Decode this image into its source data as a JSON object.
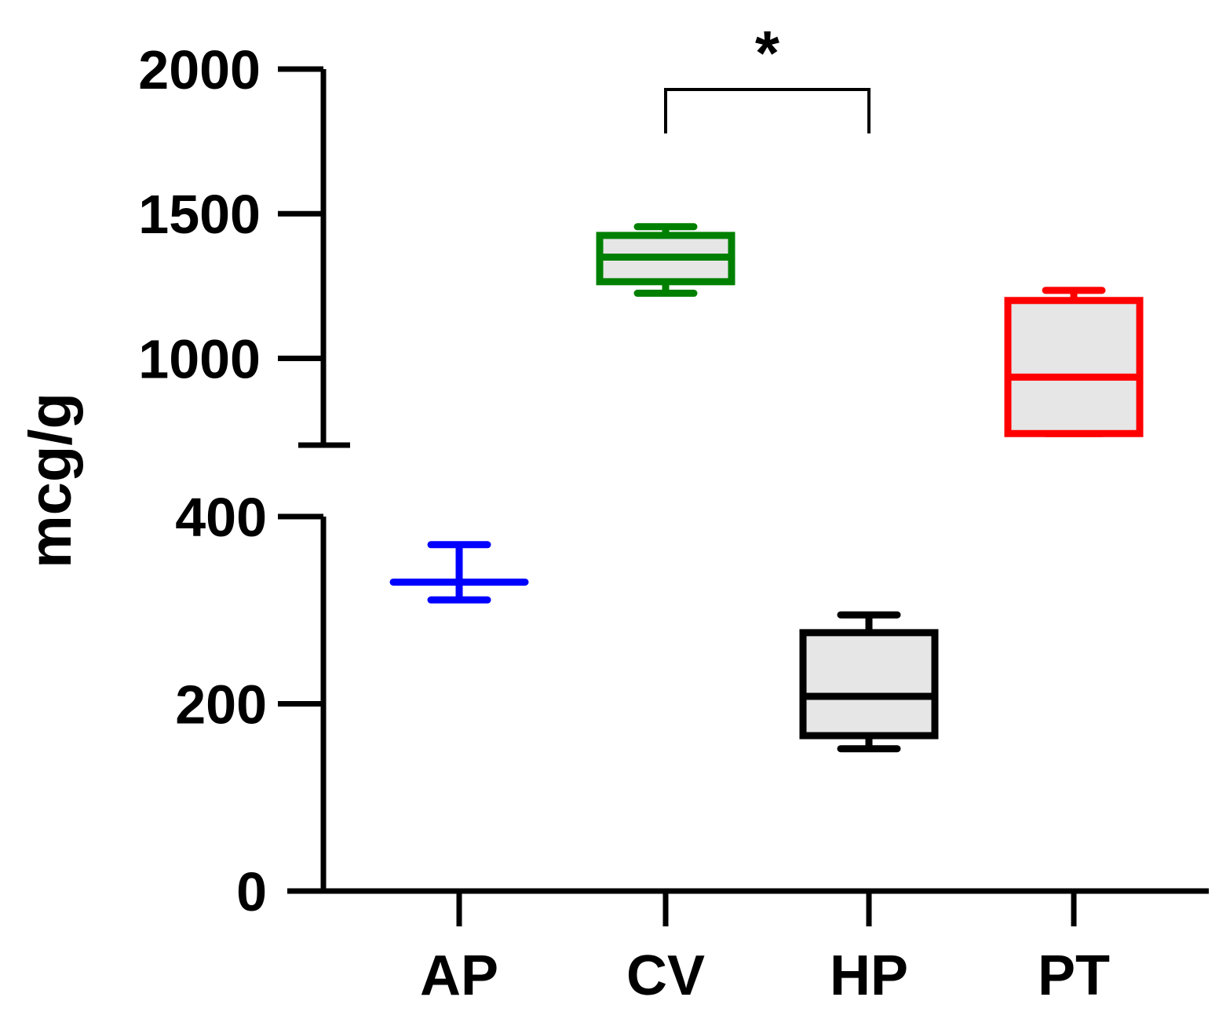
{
  "chart_data": {
    "type": "box",
    "ylabel": "mcg/g",
    "y_axis": {
      "broken": true,
      "lower_segment": {
        "range": [
          0,
          400
        ],
        "ticks": [
          "0",
          "200",
          "400"
        ]
      },
      "upper_segment": {
        "range": [
          700,
          2000
        ],
        "ticks": [
          "1000",
          "1500",
          "2000"
        ]
      }
    },
    "categories": [
      "AP",
      "CV",
      "HP",
      "PT"
    ],
    "boxes": [
      {
        "category": "AP",
        "color": "#0000ff",
        "min": 311,
        "q1": 330,
        "median": 330,
        "q3": 330,
        "max": 370
      },
      {
        "category": "CV",
        "color": "#008000",
        "min": 1225,
        "q1": 1265,
        "median": 1350,
        "q3": 1425,
        "max": 1455
      },
      {
        "category": "HP",
        "color": "#000000",
        "min": 152,
        "q1": 166,
        "median": 208,
        "q3": 276,
        "max": 295
      },
      {
        "category": "PT",
        "color": "#ff0000",
        "min": 740,
        "q1": 740,
        "median": 935,
        "q3": 1200,
        "max": 1235
      }
    ],
    "significance": [
      {
        "from": "CV",
        "to": "HP",
        "label": "*"
      }
    ]
  }
}
